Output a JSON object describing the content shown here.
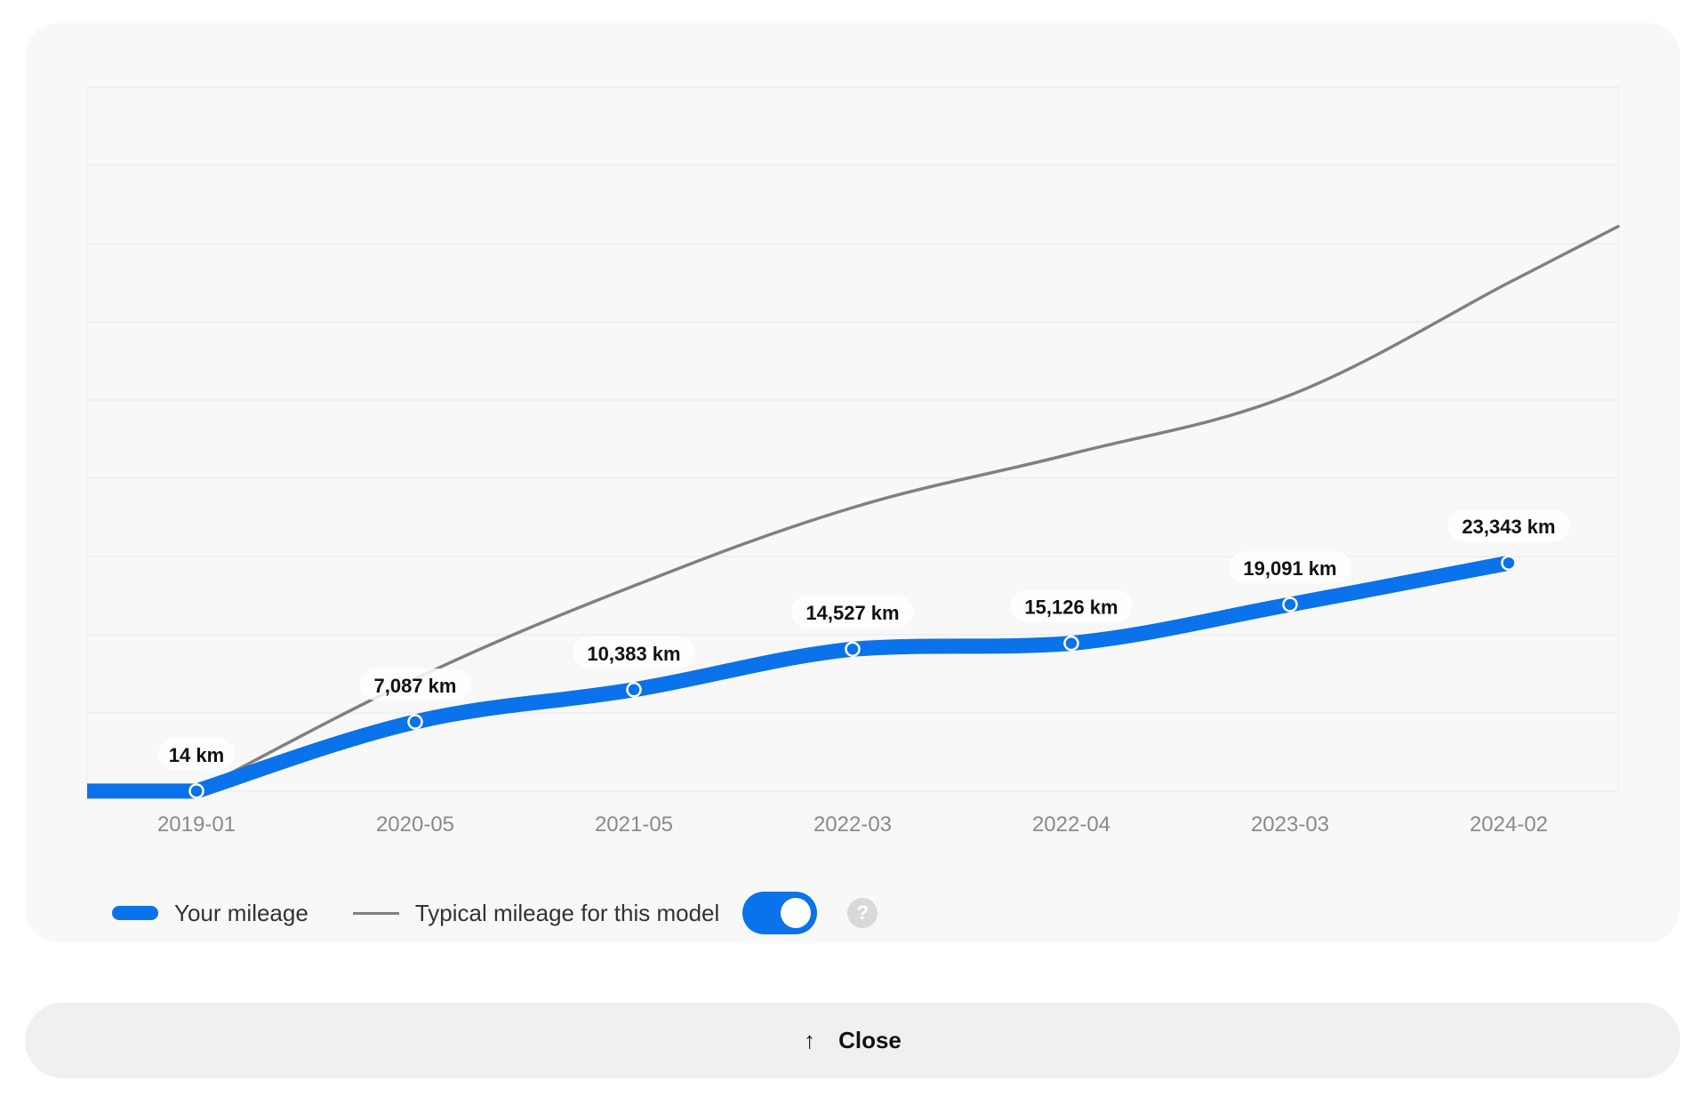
{
  "chart_data": {
    "type": "line",
    "x": [
      "2019-01",
      "2020-05",
      "2021-05",
      "2022-03",
      "2022-04",
      "2023-03",
      "2024-02"
    ],
    "series": [
      {
        "name": "Your mileage",
        "values": [
          14,
          7087,
          10383,
          14527,
          15126,
          19091,
          23343
        ],
        "data_labels": [
          "14 km",
          "7,087 km",
          "10,383 km",
          "14,527 km",
          "15,126 km",
          "19,091 km",
          "23,343 km"
        ],
        "color": "#0a72ea"
      },
      {
        "name": "Typical mileage for this model",
        "values": [
          0,
          11500,
          21000,
          29000,
          34500,
          40500,
          52000
        ],
        "color": "#808080"
      }
    ],
    "ylim": [
      0,
      72000
    ],
    "y_gridlines": 9,
    "grid": true,
    "legend_position": "bottom-left"
  },
  "legend": {
    "yours_label": "Your mileage",
    "typical_label": "Typical mileage for this model",
    "typical_toggle_on": true,
    "help_glyph": "?"
  },
  "close_button": {
    "label": "Close",
    "icon": "arrow-up-icon",
    "glyph": "↑"
  },
  "colors": {
    "accent": "#0a72ea",
    "typical_line": "#808080",
    "card_bg": "#f8f8f8"
  }
}
